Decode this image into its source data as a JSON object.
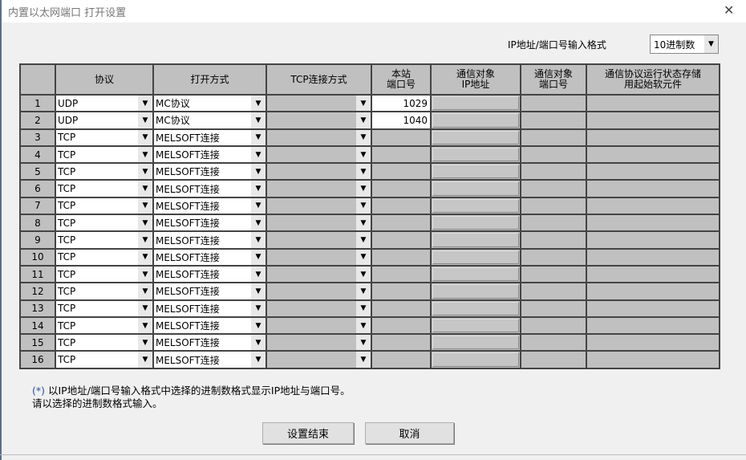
{
  "window": {
    "title": "内置以太网端口 打开设置",
    "close_icon": "close-icon"
  },
  "format": {
    "label": "IP地址/端口号输入格式",
    "value": "10进制数"
  },
  "table": {
    "headers": [
      "",
      "协议",
      "打开方式",
      "TCP连接方式",
      "本站\n端口号",
      "通信对象\nIP地址",
      "通信对象\n端口号",
      "通信协议运行状态存储\n用起始软元件"
    ],
    "rows": [
      {
        "no": "1",
        "protocol": "UDP",
        "open": "MC协议",
        "tcp": "",
        "port": "1029"
      },
      {
        "no": "2",
        "protocol": "UDP",
        "open": "MC协议",
        "tcp": "",
        "port": "1040"
      },
      {
        "no": "3",
        "protocol": "TCP",
        "open": "MELSOFT连接",
        "tcp": "",
        "port": ""
      },
      {
        "no": "4",
        "protocol": "TCP",
        "open": "MELSOFT连接",
        "tcp": "",
        "port": ""
      },
      {
        "no": "5",
        "protocol": "TCP",
        "open": "MELSOFT连接",
        "tcp": "",
        "port": ""
      },
      {
        "no": "6",
        "protocol": "TCP",
        "open": "MELSOFT连接",
        "tcp": "",
        "port": ""
      },
      {
        "no": "7",
        "protocol": "TCP",
        "open": "MELSOFT连接",
        "tcp": "",
        "port": ""
      },
      {
        "no": "8",
        "protocol": "TCP",
        "open": "MELSOFT连接",
        "tcp": "",
        "port": ""
      },
      {
        "no": "9",
        "protocol": "TCP",
        "open": "MELSOFT连接",
        "tcp": "",
        "port": ""
      },
      {
        "no": "10",
        "protocol": "TCP",
        "open": "MELSOFT连接",
        "tcp": "",
        "port": ""
      },
      {
        "no": "11",
        "protocol": "TCP",
        "open": "MELSOFT连接",
        "tcp": "",
        "port": ""
      },
      {
        "no": "12",
        "protocol": "TCP",
        "open": "MELSOFT连接",
        "tcp": "",
        "port": ""
      },
      {
        "no": "13",
        "protocol": "TCP",
        "open": "MELSOFT连接",
        "tcp": "",
        "port": ""
      },
      {
        "no": "14",
        "protocol": "TCP",
        "open": "MELSOFT连接",
        "tcp": "",
        "port": ""
      },
      {
        "no": "15",
        "protocol": "TCP",
        "open": "MELSOFT连接",
        "tcp": "",
        "port": ""
      },
      {
        "no": "16",
        "protocol": "TCP",
        "open": "MELSOFT连接",
        "tcp": "",
        "port": ""
      }
    ]
  },
  "notes": {
    "marker": "(*)",
    "line1": " 以IP地址/端口号输入格式中选择的进制数格式显示IP地址与端口号。",
    "line2": "请以选择的进制数格式输入。"
  },
  "buttons": {
    "ok": "设置结束",
    "cancel": "取消"
  }
}
